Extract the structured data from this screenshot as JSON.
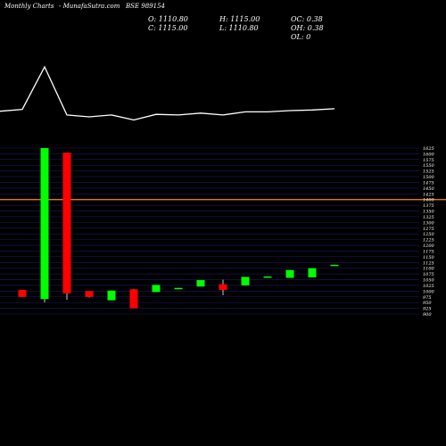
{
  "header": {
    "left": "Monthly Charts",
    "center": "- MunafaSutra.com",
    "symbol": "BSE 989154"
  },
  "ohlc": {
    "o": "O: 1110.80",
    "h": "H: 1115.00",
    "oc": "OC: 0.38",
    "c": "C: 1115.00",
    "l": "L: 1110.80",
    "oh": "OH: 0.38",
    "ol": "OL: 0"
  },
  "colors": {
    "background": "#000000",
    "up": "#00ff00",
    "down": "#ff0000",
    "grid": "#1a1a66",
    "hline": "#ff8c00",
    "line": "#ffffff"
  },
  "chart_data": {
    "type": "candlestick",
    "ylim": [
      900,
      1625
    ],
    "yticks": [
      1625,
      1600,
      1575,
      1550,
      1525,
      1500,
      1475,
      1450,
      1425,
      1400,
      1375,
      1350,
      1325,
      1300,
      1275,
      1250,
      1225,
      1200,
      1175,
      1150,
      1125,
      1100,
      1075,
      1050,
      1025,
      1000,
      975,
      950,
      925,
      900
    ],
    "reference_level": 1400,
    "candles": [
      {
        "o": 1005,
        "h": 1005,
        "l": 975,
        "c": 975,
        "dir": "down"
      },
      {
        "o": 965,
        "h": 1625,
        "l": 950,
        "c": 1625,
        "dir": "up"
      },
      {
        "o": 1605,
        "h": 1605,
        "l": 962,
        "c": 990,
        "dir": "down"
      },
      {
        "o": 1000,
        "h": 1000,
        "l": 972,
        "c": 975,
        "dir": "down"
      },
      {
        "o": 960,
        "h": 1002,
        "l": 960,
        "c": 1002,
        "dir": "up"
      },
      {
        "o": 1008,
        "h": 1010,
        "l": 925,
        "c": 925,
        "dir": "down"
      },
      {
        "o": 996,
        "h": 1027,
        "l": 996,
        "c": 1027,
        "dir": "up"
      },
      {
        "o": 1010,
        "h": 1014,
        "l": 1010,
        "c": 1014,
        "dir": "up"
      },
      {
        "o": 1020,
        "h": 1048,
        "l": 1020,
        "c": 1048,
        "dir": "up"
      },
      {
        "o": 1030,
        "h": 1050,
        "l": 982,
        "c": 1005,
        "dir": "down"
      },
      {
        "o": 1025,
        "h": 1062,
        "l": 1025,
        "c": 1062,
        "dir": "up"
      },
      {
        "o": 1061,
        "h": 1064,
        "l": 1061,
        "c": 1064,
        "dir": "up"
      },
      {
        "o": 1058,
        "h": 1092,
        "l": 1058,
        "c": 1092,
        "dir": "up"
      },
      {
        "o": 1060,
        "h": 1100,
        "l": 1060,
        "c": 1100,
        "dir": "up"
      },
      {
        "o": 1110.8,
        "h": 1115,
        "l": 1110.8,
        "c": 1115,
        "dir": "up"
      }
    ],
    "indicator_line": [
      0.68,
      0.0,
      0.77,
      0.8,
      0.77,
      0.85,
      0.76,
      0.77,
      0.74,
      0.77,
      0.72,
      0.72,
      0.7,
      0.69,
      0.67
    ]
  }
}
